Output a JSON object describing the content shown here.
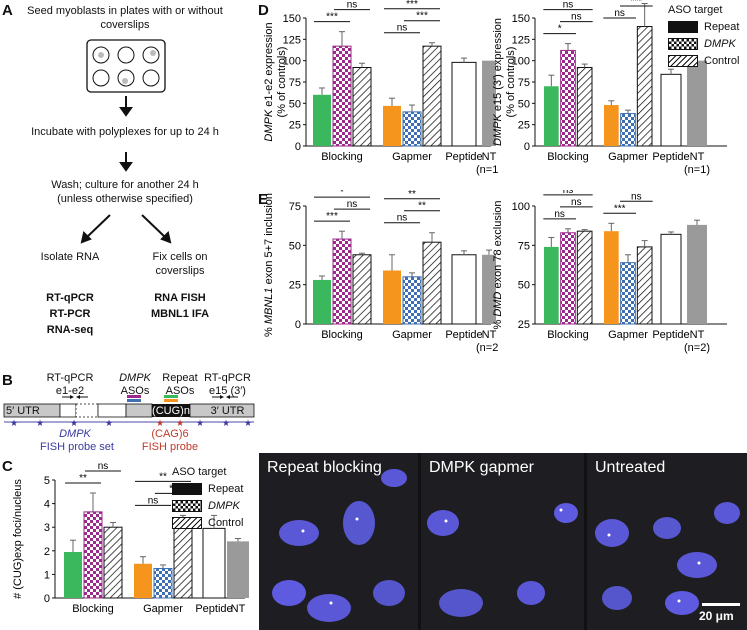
{
  "panel_letters": {
    "a": "A",
    "b": "B",
    "c": "C",
    "d": "D",
    "e": "E"
  },
  "colors": {
    "blocking": "#3bb85e",
    "gapmer": "#f6951e",
    "peptide": "#ffffff",
    "nt": "#9a9a9a",
    "dmpk_pattern": "#9b2a8c",
    "gapmer_pattern": "#3d6fb2",
    "cell_blue": "#5b58d8"
  },
  "panel_a": {
    "step1": "Seed myoblasts in plates with or without coverslips",
    "step2": "Incubate with polyplexes for up to 24 h",
    "step3a": "Wash; culture for another 24 h",
    "step3b": "(unless otherwise specified)",
    "left_branch": "Isolate RNA",
    "right_branch": "Fix cells on coverslips",
    "left_methods": [
      "RT-qPCR",
      "RT-PCR",
      "RNA-seq"
    ],
    "right_methods": [
      "RNA FISH",
      "MBNL1 IFA"
    ]
  },
  "panel_b": {
    "rtqpcr_left": "RT-qPCR",
    "rtqpcr_left_sub": "e1-e2",
    "dmpk_asos_label": "DMPK",
    "dmpk_asos_sub": "ASOs",
    "repeat_asos_label": "Repeat",
    "repeat_asos_sub": "ASOs",
    "rtqpcr_right": "RT-qPCR",
    "rtqpcr_right_sub": "e15 (3′)",
    "utr5": "5′ UTR",
    "cug": "(CUG)n",
    "utr3": "3′ UTR",
    "dmpk_probe_label": "DMPK",
    "dmpk_probe_sub": "FISH probe set",
    "cag_probe_label": "(CAG)6",
    "cag_probe_sub": "FISH probe"
  },
  "legend": {
    "title": "ASO target",
    "items": [
      "Repeat",
      "DMPK",
      "Control"
    ]
  },
  "panel_micro": {
    "titles": [
      "Repeat blocking",
      "DMPK gapmer",
      "Untreated"
    ],
    "scale_bar": "20 μm"
  },
  "chart_data": [
    {
      "id": "C",
      "type": "bar",
      "ylabel": "# (CUG)exp foci/nucleus",
      "ylim": [
        0,
        5
      ],
      "yticks": [
        "0",
        "1",
        "2",
        "3",
        "4",
        "5"
      ],
      "categories": [
        "Blocking",
        "Gapmer",
        "Peptide",
        "NT"
      ],
      "values": {
        "Blocking": [
          1.95,
          3.65,
          3.0
        ],
        "Gapmer": [
          1.45,
          1.25,
          3.05
        ],
        "Peptide": [
          2.95
        ],
        "NT": [
          2.4
        ]
      },
      "errors": {
        "Blocking": [
          0.5,
          0.8,
          0.2
        ],
        "Gapmer": [
          0.3,
          0.15,
          0.45
        ],
        "Peptide": [
          0.55
        ],
        "NT": [
          0.12
        ]
      },
      "nt_note": "",
      "significance": [
        {
          "group": "Blocking",
          "a": 0,
          "b": 1,
          "label": "**",
          "level": 0
        },
        {
          "group": "Blocking",
          "a": 1,
          "b": 2,
          "label": "ns",
          "level": 1
        },
        {
          "group": "Blocking",
          "a": 0,
          "b": 2,
          "label": "ns",
          "level": 2
        },
        {
          "group": "Gapmer",
          "a": 0,
          "b": 1,
          "label": "ns",
          "level": 0
        },
        {
          "group": "Gapmer",
          "a": 1,
          "b": 2,
          "label": "**",
          "level": 1
        },
        {
          "group": "Gapmer",
          "a": 0,
          "b": 2,
          "label": "**",
          "level": 2
        }
      ]
    },
    {
      "id": "D1",
      "type": "bar",
      "ylabel_italic": "DMPK",
      "ylabel": " e1-e2 expression",
      "ylabel2": "(% of controls)",
      "ylim": [
        0,
        150
      ],
      "yticks": [
        "0",
        "25",
        "50",
        "75",
        "100",
        "125",
        "150"
      ],
      "categories": [
        "Blocking",
        "Gapmer",
        "Peptide",
        "NT"
      ],
      "values": {
        "Blocking": [
          60,
          117,
          92
        ],
        "Gapmer": [
          47,
          40,
          117
        ],
        "Peptide": [
          98
        ],
        "NT": [
          100
        ]
      },
      "errors": {
        "Blocking": [
          8,
          17,
          5
        ],
        "Gapmer": [
          9,
          8,
          4
        ],
        "Peptide": [
          5
        ],
        "NT": [
          0
        ]
      },
      "nt_note": "(n=1)",
      "significance": [
        {
          "group": "Blocking",
          "a": 0,
          "b": 1,
          "label": "***",
          "level": 0
        },
        {
          "group": "Blocking",
          "a": 1,
          "b": 2,
          "label": "ns",
          "level": 1
        },
        {
          "group": "Blocking",
          "a": 0,
          "b": 2,
          "label": "*",
          "level": 2
        },
        {
          "group": "Gapmer",
          "a": 0,
          "b": 1,
          "label": "ns",
          "level": 0
        },
        {
          "group": "Gapmer",
          "a": 1,
          "b": 2,
          "label": "***",
          "level": 1
        },
        {
          "group": "Gapmer",
          "a": 0,
          "b": 2,
          "label": "***",
          "level": 2
        }
      ]
    },
    {
      "id": "D2",
      "type": "bar",
      "ylabel_italic": "DMPK",
      "ylabel": " e15 (3′) expression",
      "ylabel2": "(% of controls)",
      "ylim": [
        0,
        150
      ],
      "yticks": [
        "0",
        "25",
        "50",
        "75",
        "100",
        "125",
        "150"
      ],
      "categories": [
        "Blocking",
        "Gapmer",
        "Peptide",
        "NT"
      ],
      "values": {
        "Blocking": [
          70,
          112,
          92
        ],
        "Gapmer": [
          48,
          38,
          140
        ],
        "Peptide": [
          84
        ],
        "NT": [
          100
        ]
      },
      "errors": {
        "Blocking": [
          13,
          8,
          4
        ],
        "Gapmer": [
          5,
          4,
          27
        ],
        "Peptide": [
          6
        ],
        "NT": [
          0
        ]
      },
      "nt_note": "(n=1)",
      "significance": [
        {
          "group": "Blocking",
          "a": 0,
          "b": 1,
          "label": "*",
          "level": 0
        },
        {
          "group": "Blocking",
          "a": 1,
          "b": 2,
          "label": "ns",
          "level": 1
        },
        {
          "group": "Blocking",
          "a": 0,
          "b": 2,
          "label": "ns",
          "level": 2
        },
        {
          "group": "Gapmer",
          "a": 0,
          "b": 1,
          "label": "ns",
          "level": 0
        },
        {
          "group": "Gapmer",
          "a": 1,
          "b": 2,
          "label": "***",
          "level": 1
        },
        {
          "group": "Gapmer",
          "a": 0,
          "b": 2,
          "label": "***",
          "level": 2
        }
      ]
    },
    {
      "id": "E1",
      "type": "bar",
      "ylabel_pre": "% ",
      "ylabel_italic": "MBNL1",
      "ylabel": " exon 5+7 inclusion",
      "ylim": [
        0,
        75
      ],
      "yticks": [
        "0",
        "25",
        "50",
        "75"
      ],
      "categories": [
        "Blocking",
        "Gapmer",
        "Peptide",
        "NT"
      ],
      "values": {
        "Blocking": [
          28,
          54,
          44
        ],
        "Gapmer": [
          34,
          30,
          52
        ],
        "Peptide": [
          44
        ],
        "NT": [
          44
        ]
      },
      "errors": {
        "Blocking": [
          2.5,
          5,
          1
        ],
        "Gapmer": [
          10,
          2.5,
          6
        ],
        "Peptide": [
          2.5
        ],
        "NT": [
          3
        ]
      },
      "nt_note": "(n=2)",
      "significance": [
        {
          "group": "Blocking",
          "a": 0,
          "b": 1,
          "label": "***",
          "level": 0
        },
        {
          "group": "Blocking",
          "a": 1,
          "b": 2,
          "label": "ns",
          "level": 1
        },
        {
          "group": "Blocking",
          "a": 0,
          "b": 2,
          "label": "*",
          "level": 2
        },
        {
          "group": "Gapmer",
          "a": 0,
          "b": 1,
          "label": "ns",
          "level": 0
        },
        {
          "group": "Gapmer",
          "a": 1,
          "b": 2,
          "label": "**",
          "level": 1
        },
        {
          "group": "Gapmer",
          "a": 0,
          "b": 2,
          "label": "**",
          "level": 2
        }
      ]
    },
    {
      "id": "E2",
      "type": "bar",
      "ylabel_pre": "% ",
      "ylabel_italic": "DMD",
      "ylabel": " exon 78 exclusion",
      "ylim": [
        25,
        100
      ],
      "yticks": [
        "25",
        "50",
        "75",
        "100"
      ],
      "categories": [
        "Blocking",
        "Gapmer",
        "Peptide",
        "NT"
      ],
      "values": {
        "Blocking": [
          74,
          83,
          84
        ],
        "Gapmer": [
          84,
          64,
          74
        ],
        "Peptide": [
          82
        ],
        "NT": [
          88
        ]
      },
      "errors": {
        "Blocking": [
          6,
          2.5,
          1
        ],
        "Gapmer": [
          5,
          5,
          4
        ],
        "Peptide": [
          1.5
        ],
        "NT": [
          3
        ]
      },
      "nt_note": "(n=2)",
      "significance": [
        {
          "group": "Blocking",
          "a": 0,
          "b": 1,
          "label": "ns",
          "level": 0
        },
        {
          "group": "Blocking",
          "a": 1,
          "b": 2,
          "label": "ns",
          "level": 1
        },
        {
          "group": "Blocking",
          "a": 0,
          "b": 2,
          "label": "ns",
          "level": 2
        },
        {
          "group": "Gapmer",
          "a": 0,
          "b": 1,
          "label": "***",
          "level": 0
        },
        {
          "group": "Gapmer",
          "a": 1,
          "b": 2,
          "label": "ns",
          "level": 1
        },
        {
          "group": "Gapmer",
          "a": 0,
          "b": 2,
          "label": "ns",
          "level": 2
        }
      ]
    }
  ]
}
